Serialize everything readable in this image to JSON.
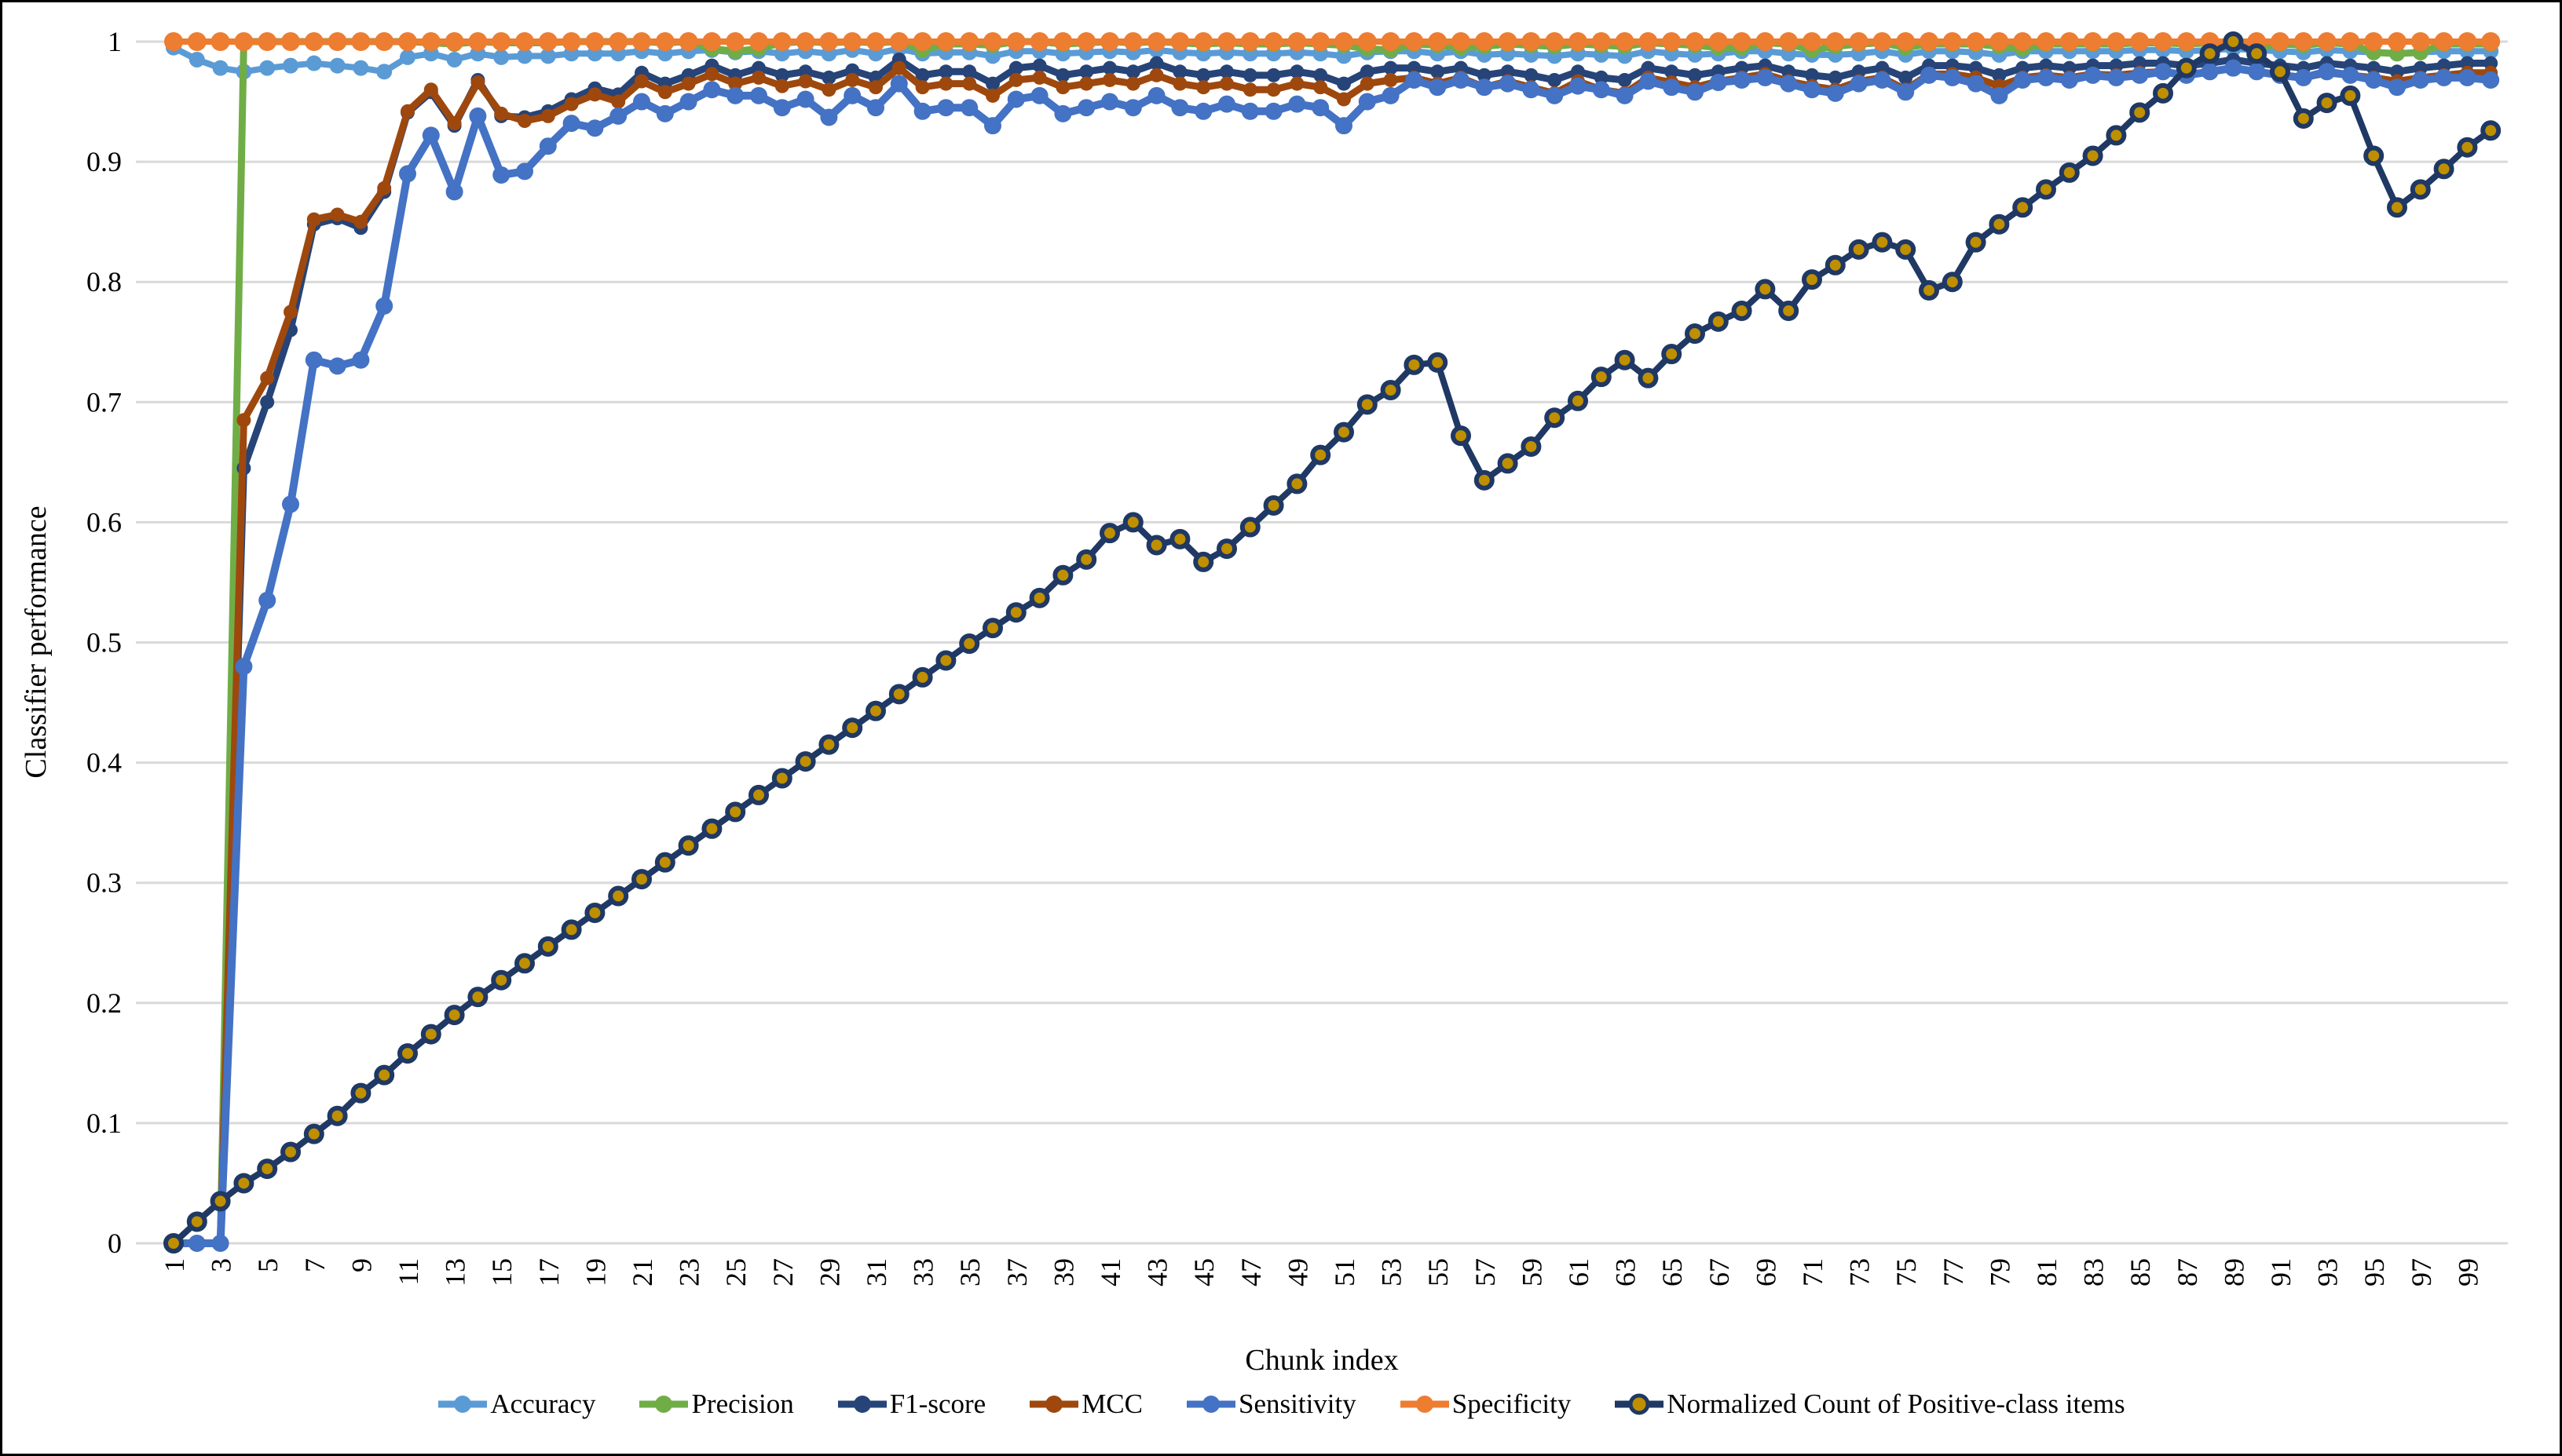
{
  "chart_data": {
    "type": "line",
    "title": "",
    "xlabel": "Chunk index",
    "ylabel": "Classifier performance",
    "x_range": [
      1,
      100
    ],
    "ylim": [
      0,
      1
    ],
    "grid": "horizontal",
    "legend_position": "bottom",
    "grid_color": "#D9D9D9",
    "y_ticks": [
      {
        "label": "1",
        "value": 1
      },
      {
        "label": "0.9",
        "value": 0.9
      },
      {
        "label": "0.8",
        "value": 0.8
      },
      {
        "label": "0.7",
        "value": 0.7
      },
      {
        "label": "0.6",
        "value": 0.6
      },
      {
        "label": "0.5",
        "value": 0.5
      },
      {
        "label": "0.4",
        "value": 0.4
      },
      {
        "label": "0.3",
        "value": 0.3
      },
      {
        "label": "0.2",
        "value": 0.2
      },
      {
        "label": "0.1",
        "value": 0.1
      },
      {
        "label": "0",
        "value": 0
      }
    ],
    "x_tick_labels": [
      "1",
      "3",
      "5",
      "7",
      "9",
      "11",
      "13",
      "15",
      "17",
      "19",
      "21",
      "23",
      "25",
      "27",
      "29",
      "31",
      "33",
      "35",
      "37",
      "39",
      "41",
      "43",
      "45",
      "47",
      "49",
      "51",
      "53",
      "55",
      "57",
      "59",
      "61",
      "63",
      "65",
      "67",
      "69",
      "71",
      "73",
      "75",
      "77",
      "79",
      "81",
      "83",
      "85",
      "87",
      "89",
      "91",
      "93",
      "95",
      "97",
      "99"
    ],
    "series": [
      {
        "name": "Accuracy",
        "color": "#5B9BD5",
        "line_width": 8,
        "marker_radius": 10,
        "values": [
          0.995,
          0.985,
          0.978,
          0.975,
          0.978,
          0.98,
          0.982,
          0.98,
          0.978,
          0.975,
          0.987,
          0.99,
          0.985,
          0.99,
          0.987,
          0.988,
          0.988,
          0.99,
          0.99,
          0.99,
          0.992,
          0.99,
          0.992,
          0.993,
          0.991,
          0.992,
          0.99,
          0.992,
          0.99,
          0.993,
          0.99,
          0.994,
          0.99,
          0.991,
          0.991,
          0.988,
          0.992,
          0.992,
          0.99,
          0.991,
          0.992,
          0.991,
          0.993,
          0.991,
          0.99,
          0.991,
          0.99,
          0.99,
          0.991,
          0.99,
          0.988,
          0.991,
          0.992,
          0.992,
          0.99,
          0.992,
          0.989,
          0.99,
          0.989,
          0.988,
          0.99,
          0.989,
          0.988,
          0.992,
          0.99,
          0.989,
          0.99,
          0.992,
          0.992,
          0.99,
          0.989,
          0.989,
          0.99,
          0.992,
          0.989,
          0.992,
          0.992,
          0.991,
          0.989,
          0.992,
          0.992,
          0.992,
          0.992,
          0.992,
          0.993,
          0.993,
          0.992,
          0.993,
          0.994,
          0.993,
          0.992,
          0.991,
          0.993,
          0.992,
          0.991,
          0.99,
          0.991,
          0.992,
          0.992,
          0.992
        ]
      },
      {
        "name": "Precision",
        "color": "#70AD47",
        "line_width": 9,
        "marker_radius": 10,
        "values": [
          0,
          0,
          0,
          1.0,
          1.0,
          1.0,
          1.0,
          1.0,
          1.0,
          1.0,
          1.0,
          0.999,
          0.998,
          1.0,
          0.999,
          0.999,
          0.999,
          1.0,
          1.0,
          1.0,
          1.0,
          0.999,
          1.0,
          0.994,
          0.992,
          0.994,
          0.999,
          1.0,
          0.999,
          1.0,
          0.999,
          1.0,
          0.993,
          0.998,
          0.998,
          0.997,
          1.0,
          1.0,
          0.998,
          0.999,
          1.0,
          0.999,
          1.0,
          0.999,
          0.998,
          0.999,
          0.998,
          0.998,
          0.999,
          0.998,
          0.997,
          0.994,
          0.993,
          0.998,
          0.997,
          0.995,
          0.996,
          0.998,
          0.997,
          0.996,
          0.998,
          0.997,
          0.996,
          0.999,
          0.998,
          0.997,
          0.995,
          0.995,
          0.999,
          0.998,
          0.993,
          0.996,
          0.998,
          0.999,
          0.995,
          0.998,
          0.998,
          0.998,
          0.996,
          0.994,
          0.998,
          0.998,
          0.998,
          0.998,
          0.999,
          0.999,
          0.998,
          0.999,
          1.0,
          0.995,
          0.998,
          0.997,
          0.999,
          0.998,
          0.991,
          0.99,
          0.991,
          0.998,
          0.998,
          0.998
        ]
      },
      {
        "name": "F1-score",
        "color": "#264478",
        "line_width": 9,
        "marker_radius": 9,
        "values": [
          0,
          0,
          0,
          0.645,
          0.7,
          0.76,
          0.848,
          0.853,
          0.845,
          0.875,
          0.941,
          0.958,
          0.93,
          0.968,
          0.938,
          0.937,
          0.942,
          0.952,
          0.961,
          0.956,
          0.974,
          0.965,
          0.972,
          0.98,
          0.972,
          0.978,
          0.972,
          0.975,
          0.97,
          0.976,
          0.97,
          0.985,
          0.972,
          0.975,
          0.975,
          0.965,
          0.978,
          0.98,
          0.972,
          0.975,
          0.978,
          0.975,
          0.982,
          0.975,
          0.972,
          0.975,
          0.972,
          0.972,
          0.975,
          0.972,
          0.965,
          0.975,
          0.978,
          0.978,
          0.975,
          0.978,
          0.972,
          0.975,
          0.972,
          0.968,
          0.975,
          0.97,
          0.968,
          0.978,
          0.975,
          0.972,
          0.975,
          0.978,
          0.98,
          0.975,
          0.972,
          0.97,
          0.975,
          0.978,
          0.97,
          0.98,
          0.98,
          0.978,
          0.972,
          0.978,
          0.98,
          0.978,
          0.98,
          0.98,
          0.982,
          0.982,
          0.98,
          0.982,
          0.985,
          0.982,
          0.98,
          0.978,
          0.982,
          0.98,
          0.978,
          0.975,
          0.978,
          0.98,
          0.982,
          0.982
        ]
      },
      {
        "name": "MCC",
        "color": "#9E480E",
        "line_width": 9,
        "marker_radius": 9,
        "values": [
          0,
          0,
          0,
          0.685,
          0.72,
          0.775,
          0.852,
          0.856,
          0.85,
          0.878,
          0.942,
          0.96,
          0.932,
          0.966,
          0.94,
          0.934,
          0.938,
          0.948,
          0.956,
          0.95,
          0.967,
          0.958,
          0.965,
          0.973,
          0.965,
          0.97,
          0.963,
          0.967,
          0.96,
          0.968,
          0.962,
          0.978,
          0.962,
          0.965,
          0.965,
          0.955,
          0.968,
          0.97,
          0.962,
          0.965,
          0.968,
          0.965,
          0.972,
          0.965,
          0.962,
          0.965,
          0.96,
          0.96,
          0.965,
          0.962,
          0.952,
          0.965,
          0.968,
          0.97,
          0.965,
          0.97,
          0.962,
          0.967,
          0.962,
          0.957,
          0.967,
          0.96,
          0.957,
          0.97,
          0.966,
          0.962,
          0.967,
          0.97,
          0.973,
          0.967,
          0.963,
          0.96,
          0.967,
          0.97,
          0.96,
          0.973,
          0.973,
          0.97,
          0.963,
          0.97,
          0.972,
          0.97,
          0.973,
          0.972,
          0.974,
          0.975,
          0.972,
          0.975,
          0.978,
          0.975,
          0.972,
          0.97,
          0.974,
          0.972,
          0.97,
          0.967,
          0.97,
          0.972,
          0.974,
          0.974
        ]
      },
      {
        "name": "Sensitivity",
        "color": "#4472C4",
        "line_width": 10,
        "marker_radius": 11,
        "values": [
          0,
          0,
          0,
          0.48,
          0.535,
          0.615,
          0.735,
          0.73,
          0.735,
          0.78,
          0.89,
          0.922,
          0.875,
          0.938,
          0.889,
          0.892,
          0.913,
          0.932,
          0.928,
          0.938,
          0.95,
          0.94,
          0.95,
          0.96,
          0.955,
          0.955,
          0.945,
          0.952,
          0.937,
          0.955,
          0.945,
          0.965,
          0.942,
          0.945,
          0.945,
          0.93,
          0.952,
          0.955,
          0.94,
          0.945,
          0.95,
          0.945,
          0.955,
          0.945,
          0.942,
          0.948,
          0.942,
          0.942,
          0.948,
          0.945,
          0.93,
          0.95,
          0.955,
          0.968,
          0.962,
          0.968,
          0.962,
          0.965,
          0.96,
          0.955,
          0.963,
          0.96,
          0.955,
          0.967,
          0.962,
          0.958,
          0.966,
          0.968,
          0.97,
          0.965,
          0.96,
          0.957,
          0.965,
          0.968,
          0.958,
          0.972,
          0.97,
          0.965,
          0.955,
          0.968,
          0.97,
          0.968,
          0.972,
          0.97,
          0.972,
          0.975,
          0.972,
          0.975,
          0.978,
          0.975,
          0.972,
          0.97,
          0.975,
          0.972,
          0.968,
          0.962,
          0.968,
          0.97,
          0.97,
          0.968
        ]
      },
      {
        "name": "Specificity",
        "color": "#ED7D31",
        "line_width": 8,
        "marker_radius": 12,
        "values": [
          1,
          1,
          1,
          1,
          1,
          1,
          1,
          1,
          1,
          1,
          1,
          1,
          1,
          1,
          1,
          1,
          1,
          1,
          1,
          1,
          1,
          1,
          1,
          1,
          1,
          1,
          1,
          1,
          1,
          1,
          1,
          1,
          1,
          1,
          1,
          1,
          1,
          1,
          1,
          1,
          1,
          1,
          1,
          1,
          1,
          1,
          1,
          1,
          1,
          1,
          1,
          1,
          1,
          1,
          1,
          1,
          1,
          1,
          1,
          1,
          1,
          1,
          1,
          1,
          1,
          1,
          1,
          1,
          1,
          1,
          1,
          1,
          1,
          1,
          1,
          1,
          1,
          1,
          1,
          1,
          1,
          1,
          1,
          1,
          1,
          1,
          1,
          1,
          1,
          1,
          1,
          1,
          1,
          1,
          1,
          1,
          1,
          1,
          1,
          1
        ]
      },
      {
        "name": "Normalized Count of Positive-class items",
        "color": "#1F3864",
        "line_width": 8,
        "marker_radius": 10,
        "marker_fill": "#BF8F00",
        "marker_stroke": "#1F3864",
        "marker_stroke_width": 6,
        "values": [
          0.0,
          0.018,
          0.035,
          0.05,
          0.062,
          0.076,
          0.091,
          0.106,
          0.125,
          0.14,
          0.158,
          0.174,
          0.19,
          0.205,
          0.219,
          0.233,
          0.247,
          0.261,
          0.275,
          0.289,
          0.303,
          0.317,
          0.331,
          0.345,
          0.359,
          0.373,
          0.387,
          0.401,
          0.415,
          0.429,
          0.443,
          0.457,
          0.471,
          0.485,
          0.499,
          0.512,
          0.525,
          0.537,
          0.556,
          0.569,
          0.591,
          0.6,
          0.581,
          0.586,
          0.567,
          0.578,
          0.596,
          0.614,
          0.632,
          0.656,
          0.675,
          0.698,
          0.71,
          0.731,
          0.733,
          0.672,
          0.635,
          0.649,
          0.663,
          0.687,
          0.701,
          0.721,
          0.735,
          0.72,
          0.74,
          0.757,
          0.767,
          0.776,
          0.794,
          0.776,
          0.802,
          0.814,
          0.827,
          0.833,
          0.827,
          0.793,
          0.8,
          0.833,
          0.848,
          0.862,
          0.877,
          0.891,
          0.905,
          0.922,
          0.941,
          0.957,
          0.978,
          0.99,
          1.0,
          0.99,
          0.975,
          0.936,
          0.949,
          0.955,
          0.905,
          0.862,
          0.877,
          0.894,
          0.912,
          0.926
        ]
      }
    ]
  }
}
